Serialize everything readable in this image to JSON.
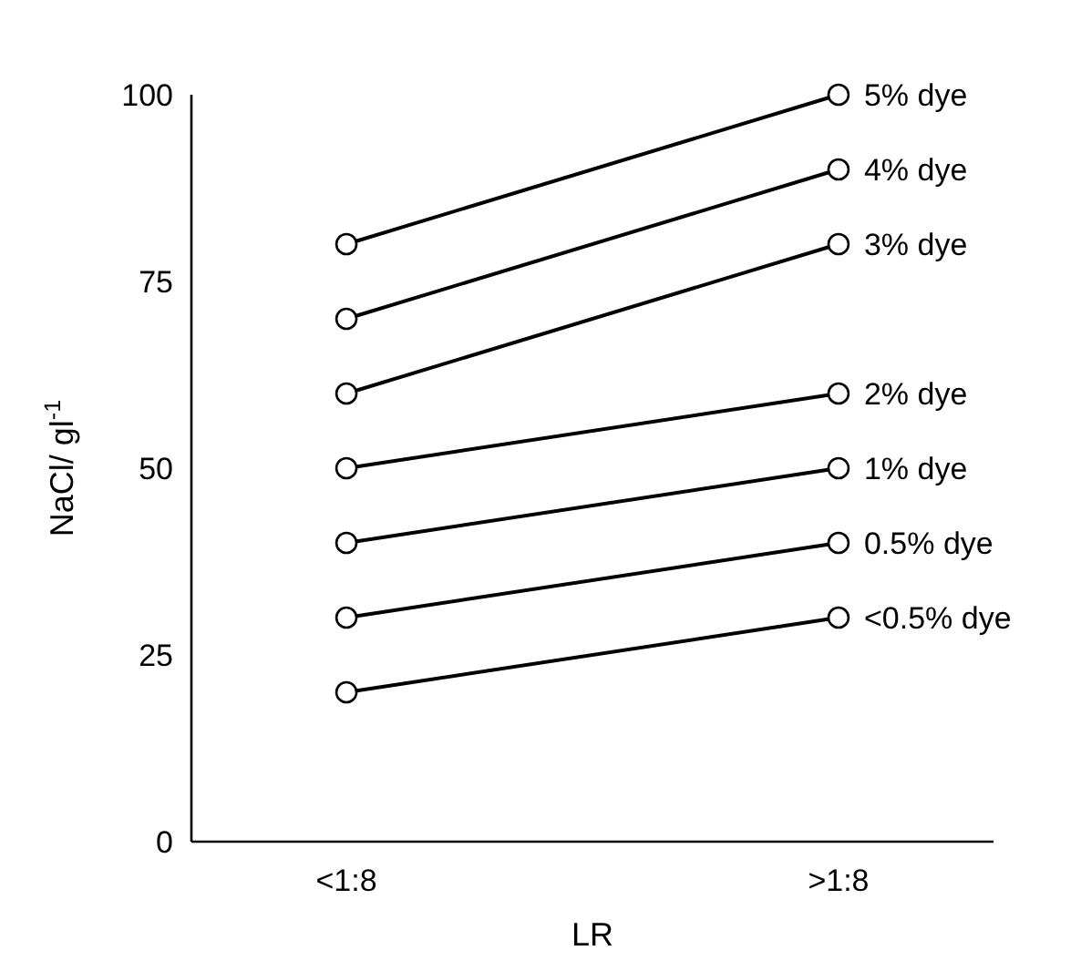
{
  "chart_data": {
    "type": "line",
    "xlabel": "LR",
    "ylabel": "NaCl/ gl$^{-1}$",
    "categories": [
      "<1:8",
      ">1:8"
    ],
    "ylim": [
      0,
      100
    ],
    "yticks": [
      0,
      25,
      50,
      75,
      100
    ],
    "marker": "circle",
    "series": [
      {
        "name": "<0.5% dye",
        "color": "#000000",
        "values": [
          20,
          30
        ]
      },
      {
        "name": "0.5% dye",
        "color": "#000000",
        "values": [
          30,
          40
        ]
      },
      {
        "name": "1% dye",
        "color": "#000000",
        "values": [
          40,
          50
        ]
      },
      {
        "name": "2% dye",
        "color": "#000000",
        "values": [
          50,
          60
        ]
      },
      {
        "name": "3% dye",
        "color": "#000000",
        "values": [
          60,
          80
        ]
      },
      {
        "name": "4% dye",
        "color": "#000000",
        "values": [
          70,
          90
        ]
      },
      {
        "name": "5% dye",
        "color": "#000000",
        "values": [
          80,
          100
        ]
      }
    ]
  }
}
